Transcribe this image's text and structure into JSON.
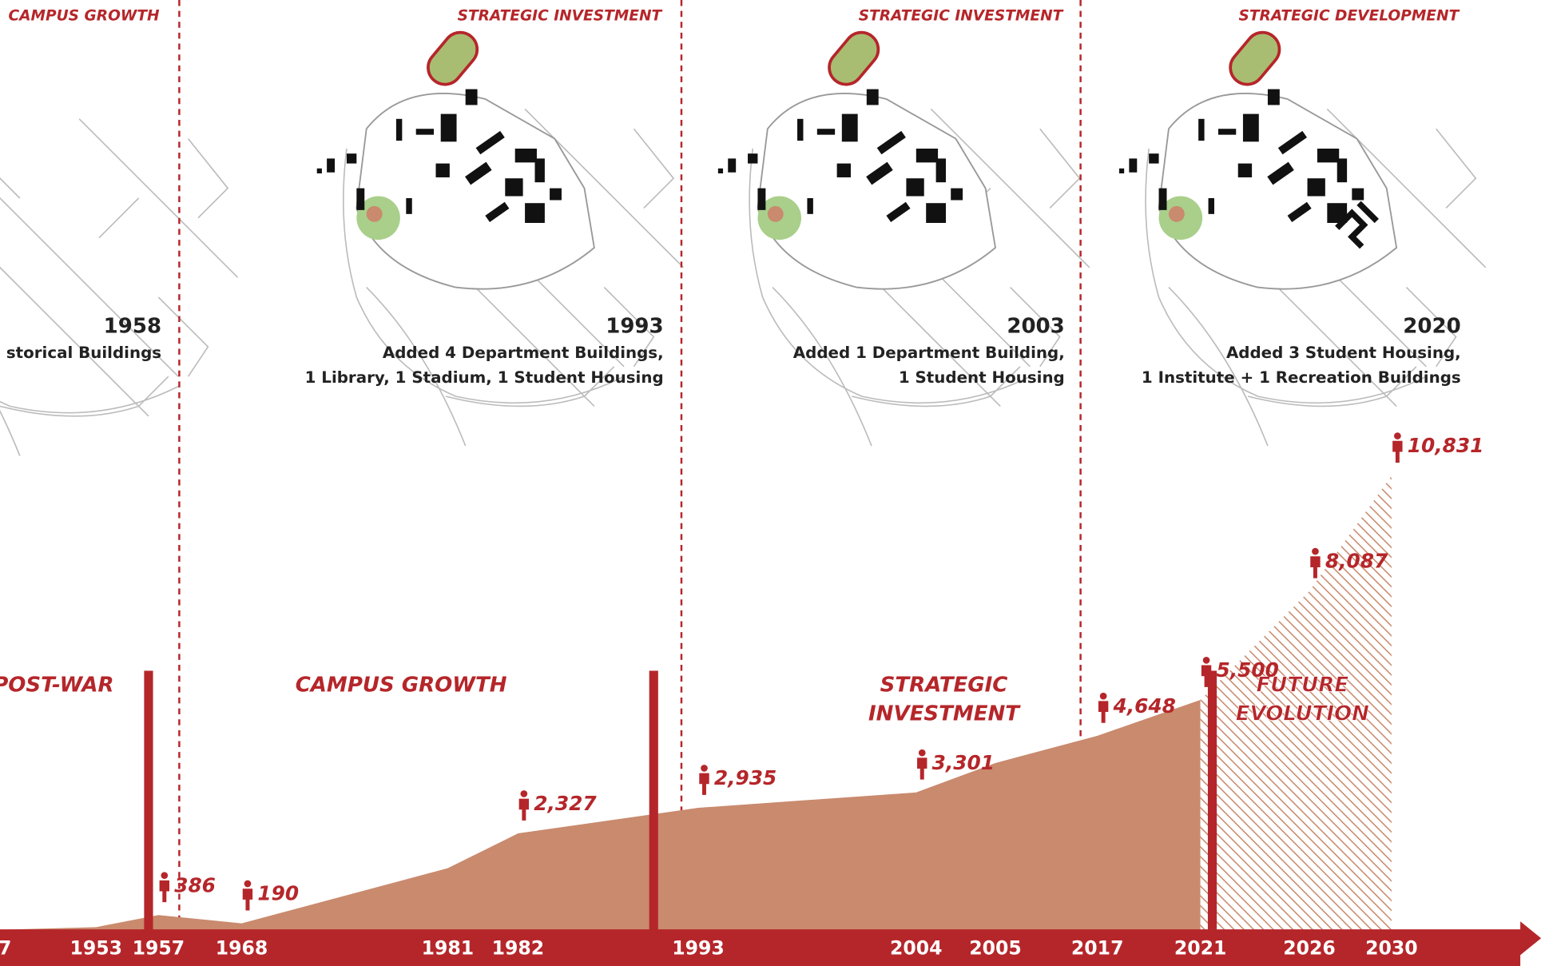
{
  "panels": [
    {
      "tag": "CAMPUS GROWTH",
      "year": "1958",
      "lines": [
        "storical Buildings"
      ]
    },
    {
      "tag": "STRATEGIC INVESTMENT",
      "year": "1993",
      "lines": [
        "Added 4 Department Buildings,",
        "1 Library, 1 Stadium, 1 Student Housing"
      ]
    },
    {
      "tag": "STRATEGIC INVESTMENT",
      "year": "2003",
      "lines": [
        "Added 1 Department Building,",
        "1 Student Housing"
      ]
    },
    {
      "tag": "STRATEGIC DEVELOPMENT",
      "year": "2020",
      "lines": [
        "Added 3 Student Housing,",
        "1 Institute + 1 Recreation Buildings"
      ]
    }
  ],
  "chart_data": {
    "type": "area",
    "categories": [
      "7",
      "1953",
      "1957",
      "1968",
      "1981",
      "1982",
      "1993",
      "2004",
      "2005",
      "2017",
      "2021",
      "2026",
      "2030"
    ],
    "values": [
      40,
      100,
      386,
      190,
      1500,
      2327,
      2935,
      3301,
      4000,
      4648,
      5500,
      8087,
      10831
    ],
    "value_labels": [
      null,
      null,
      "386",
      "190",
      null,
      "2,327",
      "2,935",
      "3,301",
      null,
      "4,648",
      "5,500",
      "8,087",
      "10,831"
    ],
    "color": "#c98a6e",
    "hatch_after": "2021",
    "periods": [
      [
        "POST-WAR"
      ],
      [
        "CAMPUS GROWTH"
      ],
      [
        "STRATEGIC",
        "INVESTMENT"
      ],
      [
        "FUTURE",
        "EVOLUTION"
      ]
    ]
  }
}
